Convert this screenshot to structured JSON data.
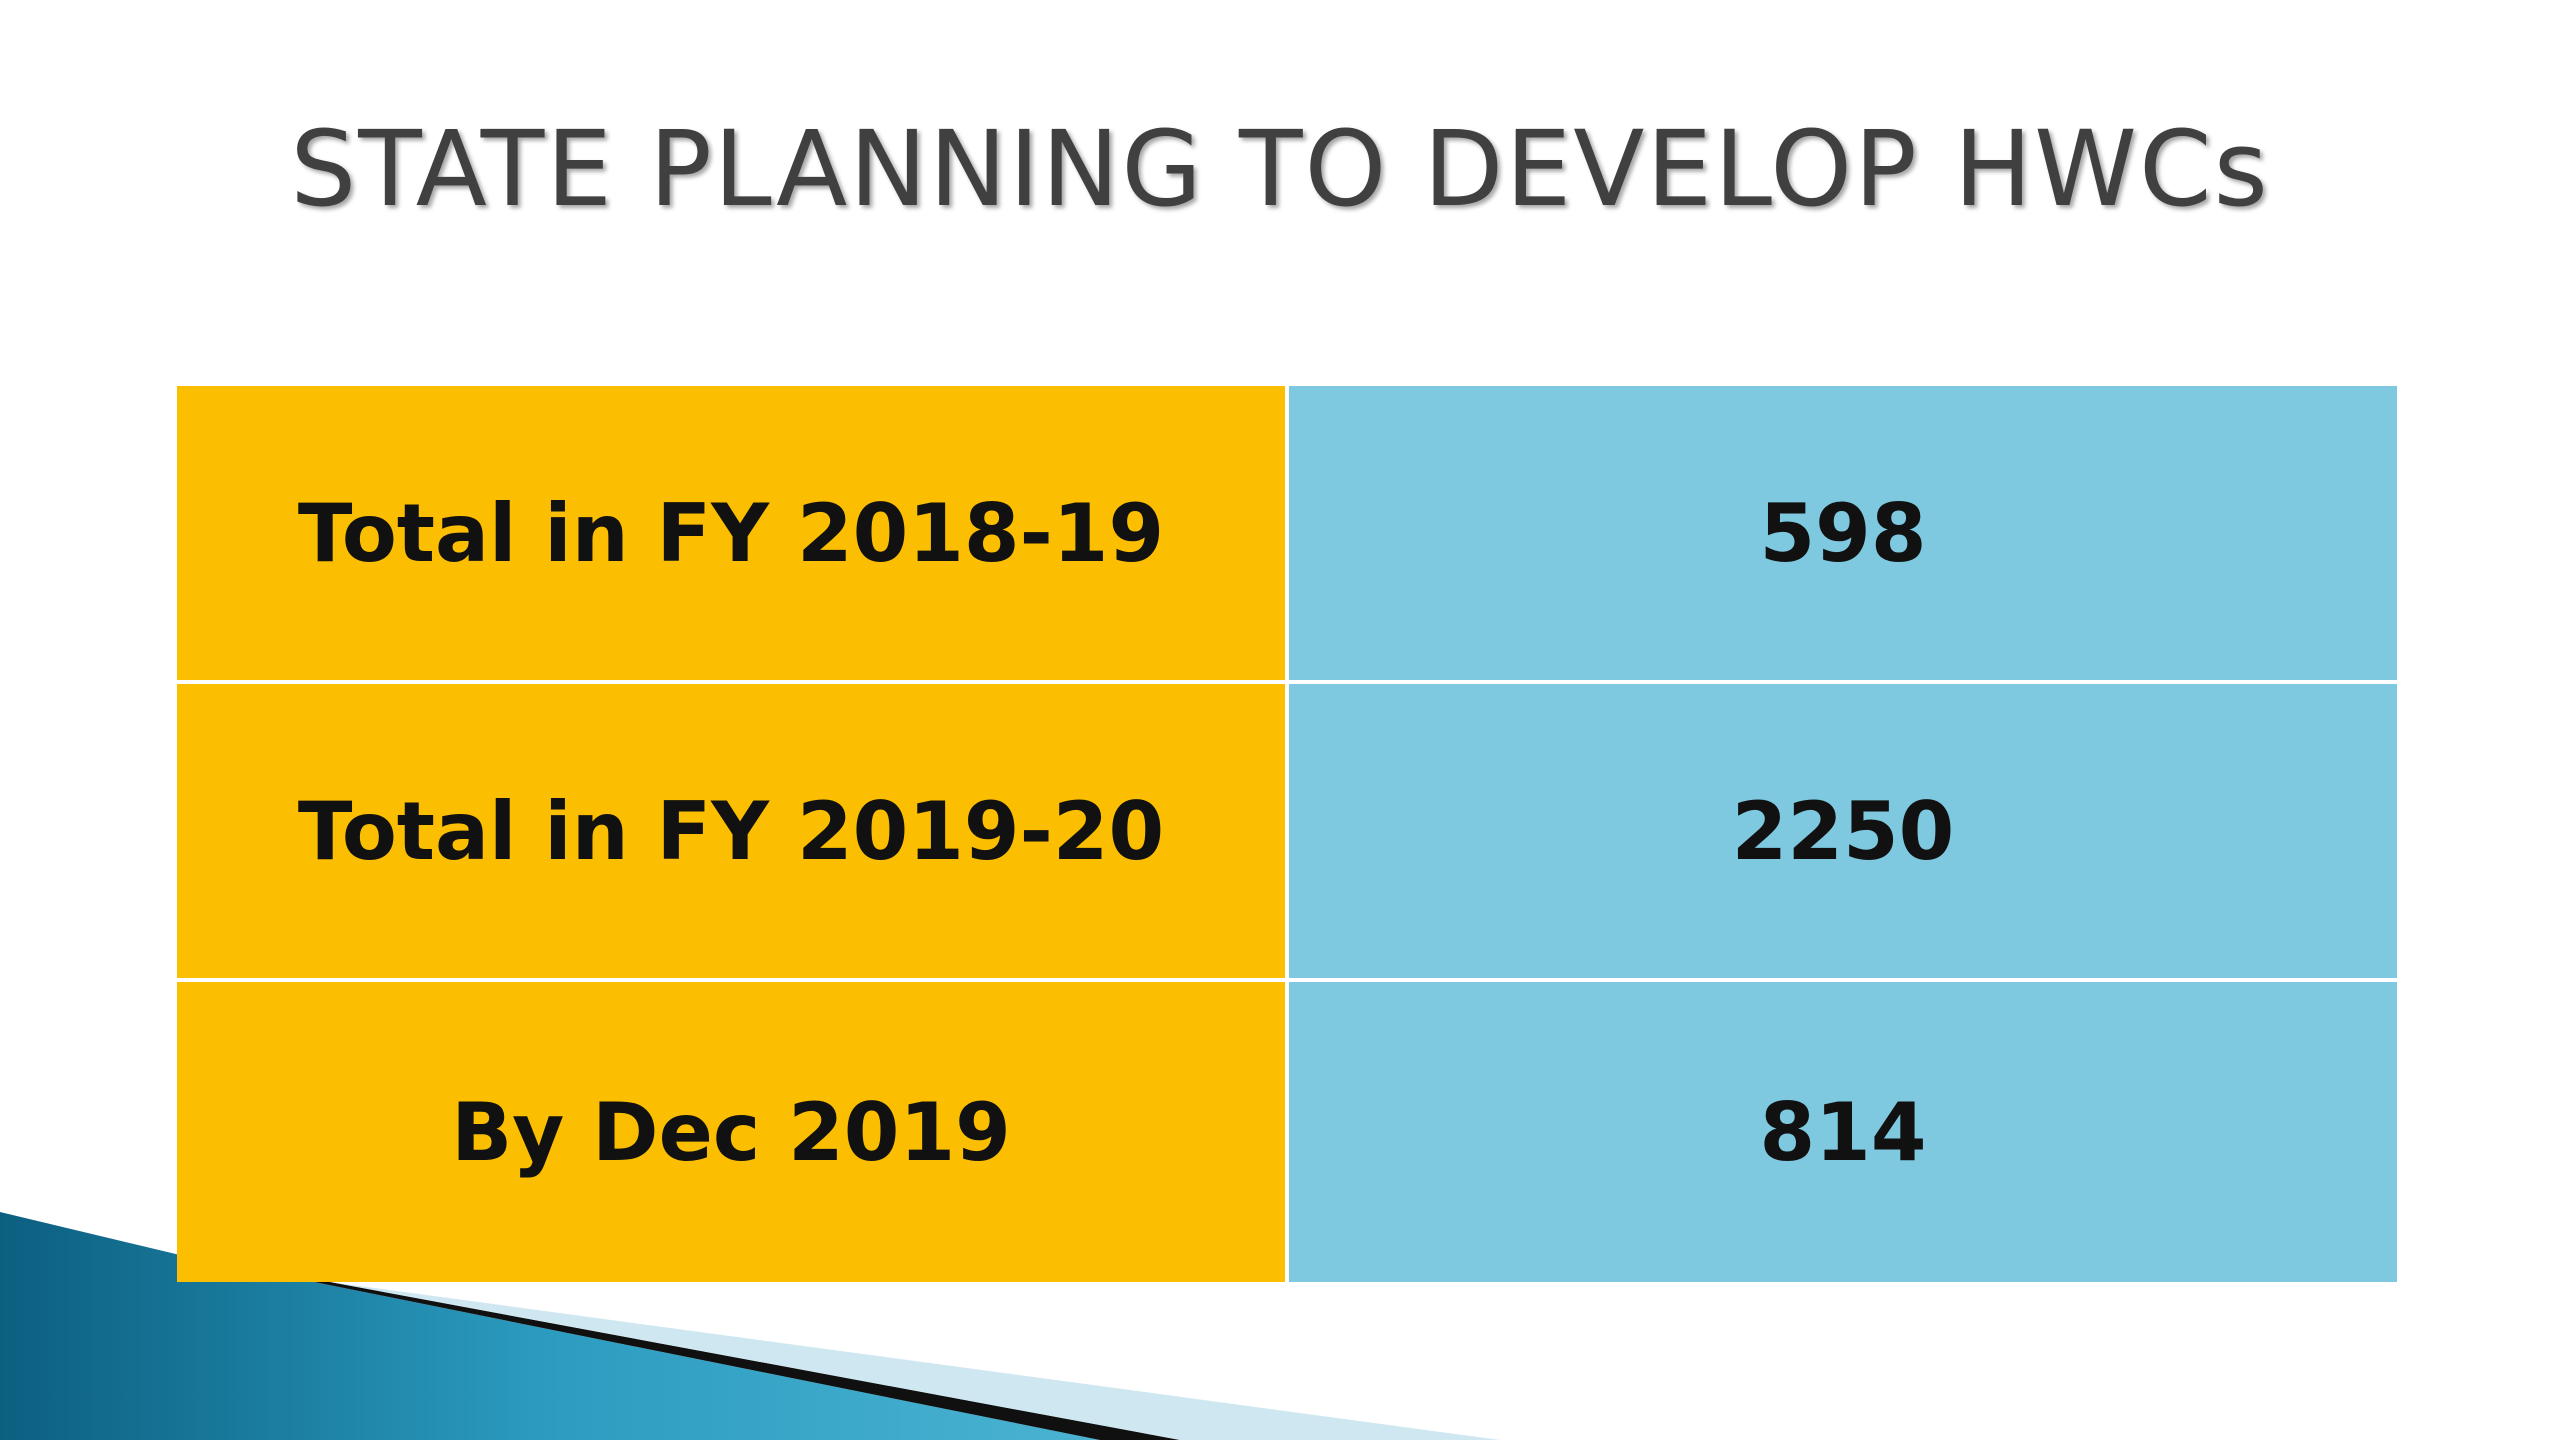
{
  "slide": {
    "title": "STATE PLANNING TO DEVELOP HWCs"
  },
  "table": {
    "rows": [
      {
        "label": "Total in FY 2018-19",
        "value": "598"
      },
      {
        "label": "Total in FY 2019-20",
        "value": "2250"
      },
      {
        "label": "By Dec 2019",
        "value": "814"
      }
    ]
  },
  "colors": {
    "label_cell": "#fcbe00",
    "value_cell": "#7ec9e0",
    "title_text": "#404040",
    "accent_teal": "#1a7fa3"
  }
}
